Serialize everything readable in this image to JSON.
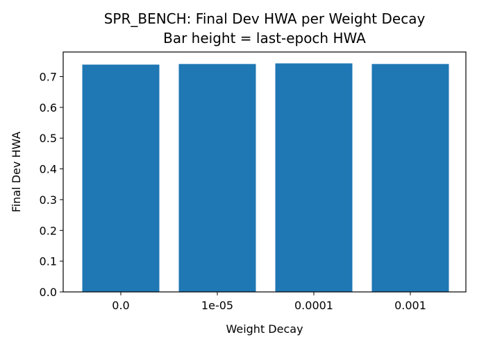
{
  "chart_data": {
    "type": "bar",
    "title": "SPR_BENCH: Final Dev HWA per Weight Decay",
    "subtitle": "Bar height = last-epoch HWA",
    "xlabel": "Weight Decay",
    "ylabel": "Final Dev HWA",
    "categories": [
      "0.0",
      "1e-05",
      "0.0001",
      "0.001"
    ],
    "values": [
      0.739,
      0.741,
      0.743,
      0.741
    ],
    "yticks": [
      "0.0",
      "0.1",
      "0.2",
      "0.3",
      "0.4",
      "0.5",
      "0.6",
      "0.7"
    ],
    "ylim": [
      0,
      0.78
    ],
    "grid": false,
    "colors": {
      "bar": "#1f77b4",
      "axis": "#000000"
    }
  }
}
